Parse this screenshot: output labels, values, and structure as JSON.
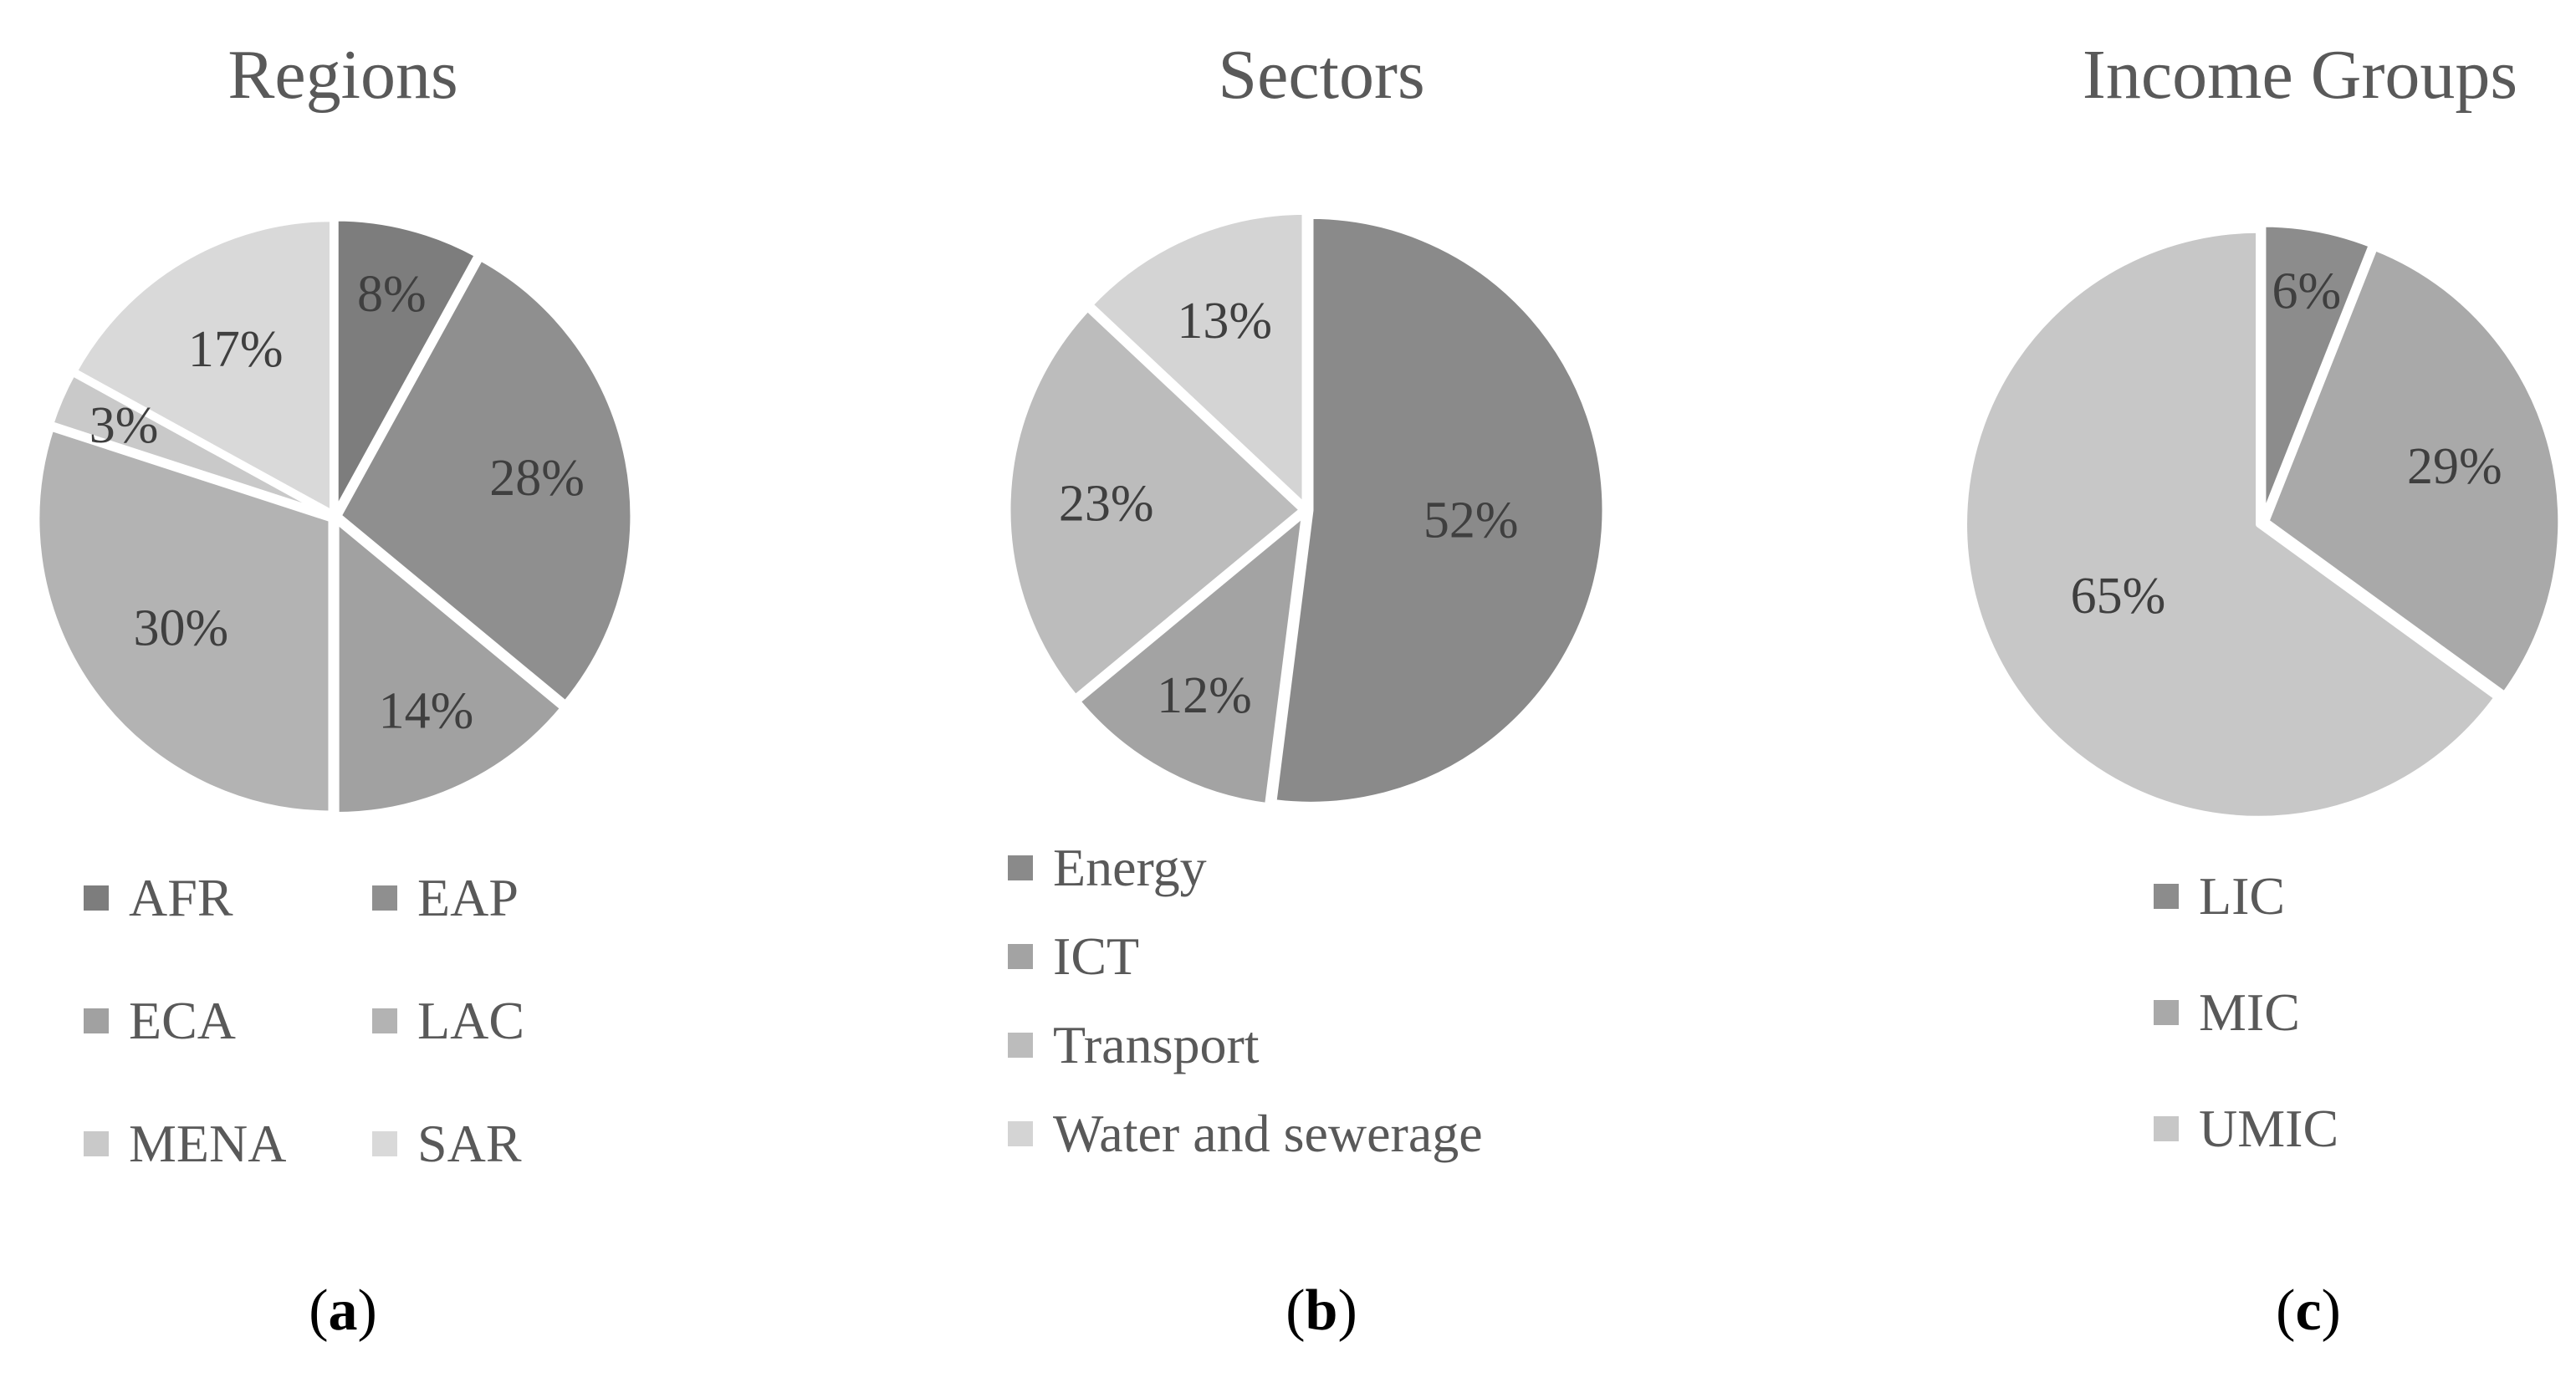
{
  "figure": {
    "captions": [
      {
        "pre": "(",
        "letter": "a",
        "post": ")"
      },
      {
        "pre": "(",
        "letter": "b",
        "post": ")"
      },
      {
        "pre": "(",
        "letter": "c",
        "post": ")"
      }
    ]
  },
  "styles": {
    "background": "#ffffff",
    "title_color": "#595959",
    "label_color": "#3f3f3f",
    "legend_text_color": "#595959",
    "caption_color": "#000000",
    "slice_border_color": "#ffffff"
  },
  "chart_data": [
    {
      "type": "pie",
      "title": "Regions",
      "categories": [
        "AFR",
        "EAP",
        "ECA",
        "LAC",
        "MENA",
        "SAR"
      ],
      "values": [
        8,
        28,
        14,
        30,
        3,
        17
      ],
      "labels": [
        "8%",
        "28%",
        "14%",
        "30%",
        "3%",
        "17%"
      ],
      "colors": [
        "#7d7d7d",
        "#8f8f8f",
        "#a1a1a1",
        "#b3b3b3",
        "#c9c9c9",
        "#d9d9d9"
      ],
      "start_angle_deg": 0,
      "direction": "clockwise",
      "legend_position": "bottom",
      "legend_columns": 2,
      "label_r": [
        0.78,
        0.7,
        0.73,
        0.645,
        0.78,
        0.66
      ]
    },
    {
      "type": "pie",
      "title": "Sectors",
      "categories": [
        "Energy",
        "ICT",
        "Transport",
        "Water and sewerage"
      ],
      "values": [
        52,
        12,
        23,
        13
      ],
      "labels": [
        "52%",
        "12%",
        "23%",
        "13%"
      ],
      "colors": [
        "#8a8a8a",
        "#a3a3a3",
        "#bcbcbc",
        "#d4d4d4"
      ],
      "start_angle_deg": 0,
      "direction": "clockwise",
      "legend_position": "bottom",
      "legend_columns": 1,
      "label_r": [
        0.56,
        0.72,
        0.68,
        0.7
      ]
    },
    {
      "type": "pie",
      "title": "Income Groups",
      "categories": [
        "LIC",
        "MIC",
        "UMIC"
      ],
      "values": [
        6,
        29,
        65
      ],
      "labels": [
        "6%",
        "29%",
        "65%"
      ],
      "colors": [
        "#8c8c8c",
        "#a9a9a9",
        "#c7c7c7"
      ],
      "start_angle_deg": 0,
      "direction": "clockwise",
      "legend_position": "bottom",
      "legend_columns": 1,
      "label_r": [
        0.8,
        0.68,
        0.55
      ]
    }
  ]
}
